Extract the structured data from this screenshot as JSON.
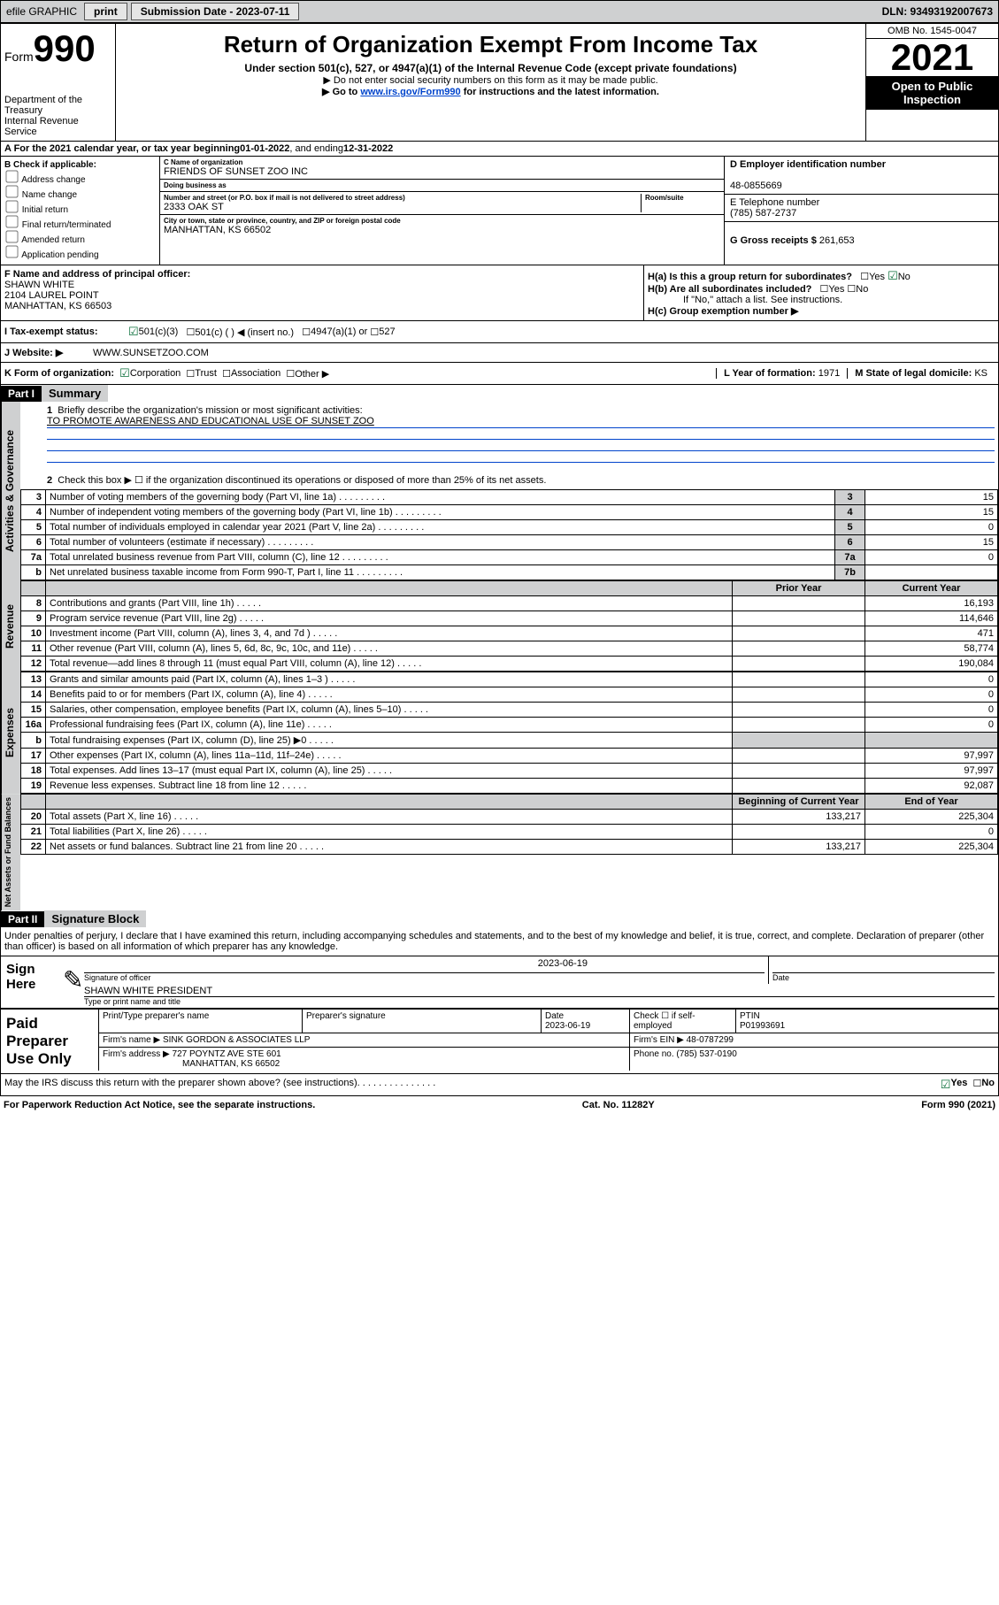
{
  "topbar": {
    "efile": "efile GRAPHIC",
    "print": "print",
    "sub_label": "Submission Date - 2023-07-11",
    "dln": "DLN: 93493192007673"
  },
  "header": {
    "form_prefix": "Form",
    "form_number": "990",
    "title": "Return of Organization Exempt From Income Tax",
    "subtitle": "Under section 501(c), 527, or 4947(a)(1) of the Internal Revenue Code (except private foundations)",
    "note1": "▶ Do not enter social security numbers on this form as it may be made public.",
    "note2_pre": "▶ Go to ",
    "note2_link": "www.irs.gov/Form990",
    "note2_post": " for instructions and the latest information.",
    "dept": "Department of the Treasury",
    "irs": "Internal Revenue Service",
    "omb": "OMB No. 1545-0047",
    "year": "2021",
    "open": "Open to Public Inspection"
  },
  "row_a": {
    "text_pre": "A For the 2021 calendar year, or tax year beginning ",
    "begin": "01-01-2022",
    "mid": " , and ending ",
    "end": "12-31-2022"
  },
  "col_b": {
    "title": "B Check if applicable:",
    "items": [
      "Address change",
      "Name change",
      "Initial return",
      "Final return/terminated",
      "Amended return",
      "Application pending"
    ]
  },
  "col_c": {
    "name_lbl": "C Name of organization",
    "name": "FRIENDS OF SUNSET ZOO INC",
    "dba_lbl": "Doing business as",
    "dba": "",
    "addr_lbl": "Number and street (or P.O. box if mail is not delivered to street address)",
    "room_lbl": "Room/suite",
    "addr": "2333 OAK ST",
    "city_lbl": "City or town, state or province, country, and ZIP or foreign postal code",
    "city": "MANHATTAN, KS  66502"
  },
  "col_d": {
    "ein_lbl": "D Employer identification number",
    "ein": "48-0855669",
    "tel_lbl": "E Telephone number",
    "tel": "(785) 587-2737",
    "gross_lbl": "G Gross receipts $",
    "gross": "261,653"
  },
  "sec_f": {
    "lbl": "F Name and address of principal officer:",
    "name": "SHAWN WHITE",
    "addr1": "2104 LAUREL POINT",
    "addr2": "MANHATTAN, KS  66503"
  },
  "sec_h": {
    "ha": "H(a)  Is this a group return for subordinates?",
    "hb": "H(b)  Are all subordinates included?",
    "hb_note": "If \"No,\" attach a list. See instructions.",
    "hc": "H(c)  Group exemption number ▶",
    "yes": "Yes",
    "no": "No"
  },
  "row_i": {
    "lbl": "I    Tax-exempt status:",
    "o1": "501(c)(3)",
    "o2": "501(c) (   ) ◀ (insert no.)",
    "o3": "4947(a)(1) or",
    "o4": "527"
  },
  "row_j": {
    "lbl": "J    Website: ▶",
    "val": "WWW.SUNSETZOO.COM"
  },
  "row_k": {
    "lbl": "K Form of organization:",
    "o1": "Corporation",
    "o2": "Trust",
    "o3": "Association",
    "o4": "Other ▶",
    "l_lbl": "L Year of formation:",
    "l_val": "1971",
    "m_lbl": "M State of legal domicile:",
    "m_val": "KS"
  },
  "part1": {
    "hdr": "Part I",
    "title": "Summary",
    "line1_lbl": "Briefly describe the organization's mission or most significant activities:",
    "line1_val": "TO PROMOTE AWARENESS AND EDUCATIONAL USE OF SUNSET ZOO",
    "line2": "Check this box ▶ ☐  if the organization discontinued its operations or disposed of more than 25% of its net assets.",
    "rows_ag": [
      {
        "n": "3",
        "d": "Number of voting members of the governing body (Part VI, line 1a)",
        "box": "3",
        "v": "15"
      },
      {
        "n": "4",
        "d": "Number of independent voting members of the governing body (Part VI, line 1b)",
        "box": "4",
        "v": "15"
      },
      {
        "n": "5",
        "d": "Total number of individuals employed in calendar year 2021 (Part V, line 2a)",
        "box": "5",
        "v": "0"
      },
      {
        "n": "6",
        "d": "Total number of volunteers (estimate if necessary)",
        "box": "6",
        "v": "15"
      },
      {
        "n": "7a",
        "d": "Total unrelated business revenue from Part VIII, column (C), line 12",
        "box": "7a",
        "v": "0"
      },
      {
        "n": "b",
        "d": "Net unrelated business taxable income from Form 990-T, Part I, line 11",
        "box": "7b",
        "v": ""
      }
    ],
    "py_hdr": "Prior Year",
    "cy_hdr": "Current Year",
    "rows_rev": [
      {
        "n": "8",
        "d": "Contributions and grants (Part VIII, line 1h)",
        "py": "",
        "cy": "16,193"
      },
      {
        "n": "9",
        "d": "Program service revenue (Part VIII, line 2g)",
        "py": "",
        "cy": "114,646"
      },
      {
        "n": "10",
        "d": "Investment income (Part VIII, column (A), lines 3, 4, and 7d )",
        "py": "",
        "cy": "471"
      },
      {
        "n": "11",
        "d": "Other revenue (Part VIII, column (A), lines 5, 6d, 8c, 9c, 10c, and 11e)",
        "py": "",
        "cy": "58,774"
      },
      {
        "n": "12",
        "d": "Total revenue—add lines 8 through 11 (must equal Part VIII, column (A), line 12)",
        "py": "",
        "cy": "190,084"
      }
    ],
    "rows_exp": [
      {
        "n": "13",
        "d": "Grants and similar amounts paid (Part IX, column (A), lines 1–3 )",
        "py": "",
        "cy": "0"
      },
      {
        "n": "14",
        "d": "Benefits paid to or for members (Part IX, column (A), line 4)",
        "py": "",
        "cy": "0"
      },
      {
        "n": "15",
        "d": "Salaries, other compensation, employee benefits (Part IX, column (A), lines 5–10)",
        "py": "",
        "cy": "0"
      },
      {
        "n": "16a",
        "d": "Professional fundraising fees (Part IX, column (A), line 11e)",
        "py": "",
        "cy": "0"
      },
      {
        "n": "b",
        "d": "Total fundraising expenses (Part IX, column (D), line 25) ▶0",
        "py": "grey",
        "cy": "grey"
      },
      {
        "n": "17",
        "d": "Other expenses (Part IX, column (A), lines 11a–11d, 11f–24e)",
        "py": "",
        "cy": "97,997"
      },
      {
        "n": "18",
        "d": "Total expenses. Add lines 13–17 (must equal Part IX, column (A), line 25)",
        "py": "",
        "cy": "97,997"
      },
      {
        "n": "19",
        "d": "Revenue less expenses. Subtract line 18 from line 12",
        "py": "",
        "cy": "92,087"
      }
    ],
    "bcy_hdr": "Beginning of Current Year",
    "eoy_hdr": "End of Year",
    "rows_na": [
      {
        "n": "20",
        "d": "Total assets (Part X, line 16)",
        "py": "133,217",
        "cy": "225,304"
      },
      {
        "n": "21",
        "d": "Total liabilities (Part X, line 26)",
        "py": "",
        "cy": "0"
      },
      {
        "n": "22",
        "d": "Net assets or fund balances. Subtract line 21 from line 20",
        "py": "133,217",
        "cy": "225,304"
      }
    ],
    "vtab1": "Activities & Governance",
    "vtab2": "Revenue",
    "vtab3": "Expenses",
    "vtab4": "Net Assets or Fund Balances"
  },
  "part2": {
    "hdr": "Part II",
    "title": "Signature Block",
    "decl": "Under penalties of perjury, I declare that I have examined this return, including accompanying schedules and statements, and to the best of my knowledge and belief, it is true, correct, and complete. Declaration of preparer (other than officer) is based on all information of which preparer has any knowledge.",
    "sign_here": "Sign Here",
    "sig_officer": "Signature of officer",
    "date": "Date",
    "sig_date": "2023-06-19",
    "officer_name": "SHAWN WHITE PRESIDENT",
    "type_name": "Type or print name and title",
    "paid": "Paid Preparer Use Only",
    "prep_name_lbl": "Print/Type preparer's name",
    "prep_sig_lbl": "Preparer's signature",
    "prep_date_lbl": "Date",
    "prep_date": "2023-06-19",
    "check_self": "Check ☐ if self-employed",
    "ptin_lbl": "PTIN",
    "ptin": "P01993691",
    "firm_name_lbl": "Firm's name    ▶",
    "firm_name": "SINK GORDON & ASSOCIATES LLP",
    "firm_ein_lbl": "Firm's EIN ▶",
    "firm_ein": "48-0787299",
    "firm_addr_lbl": "Firm's address ▶",
    "firm_addr1": "727 POYNTZ AVE STE 601",
    "firm_addr2": "MANHATTAN, KS  66502",
    "phone_lbl": "Phone no.",
    "phone": "(785) 537-0190",
    "may_irs": "May the IRS discuss this return with the preparer shown above? (see instructions)"
  },
  "footer": {
    "left": "For Paperwork Reduction Act Notice, see the separate instructions.",
    "mid": "Cat. No. 11282Y",
    "right": "Form 990 (2021)"
  },
  "colors": {
    "greybg": "#cfd0d1",
    "link": "#0044cc",
    "check_green": "#0a6e3a"
  }
}
